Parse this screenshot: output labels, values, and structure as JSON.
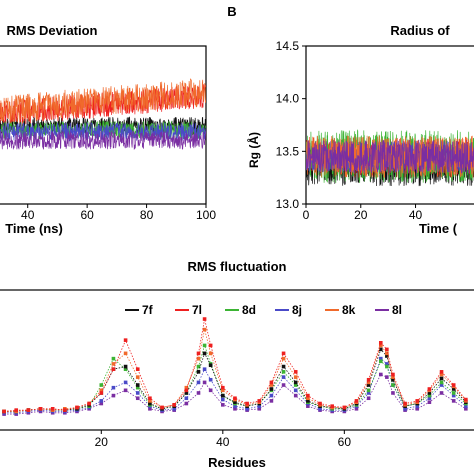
{
  "colors": {
    "7f": "#111111",
    "7l": "#ee2020",
    "8d": "#3cb434",
    "8j": "#4a4ac8",
    "8k": "#f06a2c",
    "8l": "#7a2ea2"
  },
  "panel_letter_b": "B",
  "chart_data": [
    {
      "type": "line",
      "title": "RMS Deviation",
      "xlabel": "Time (ns)",
      "ylabel": "",
      "xlim": [
        30,
        100
      ],
      "x_ticks": [
        40,
        60,
        80,
        100
      ],
      "grid": false,
      "legend": "none",
      "series": [
        {
          "key": "7f",
          "mean_level": 0.5,
          "noise": 0.1
        },
        {
          "key": "7l",
          "mean_level": 0.35,
          "noise": 0.14
        },
        {
          "key": "8d",
          "mean_level": 0.55,
          "noise": 0.1
        },
        {
          "key": "8j",
          "mean_level": 0.57,
          "noise": 0.1
        },
        {
          "key": "8k",
          "mean_level": 0.3,
          "noise": 0.16
        },
        {
          "key": "8l",
          "mean_level": 0.68,
          "noise": 0.1
        }
      ]
    },
    {
      "type": "line",
      "title": "Radius of",
      "xlabel": "Time (",
      "ylabel": "Rg (Å)",
      "xlim": [
        0,
        65
      ],
      "ylim": [
        13.0,
        14.5
      ],
      "x_ticks": [
        0,
        20,
        40
      ],
      "y_ticks": [
        13.0,
        13.5,
        14.0,
        14.5
      ],
      "grid": false,
      "legend": "none",
      "series": [
        {
          "key": "7f",
          "mean": 13.35,
          "noise": 0.18
        },
        {
          "key": "7l",
          "mean": 13.45,
          "noise": 0.18
        },
        {
          "key": "8d",
          "mean": 13.45,
          "noise": 0.25
        },
        {
          "key": "8j",
          "mean": 13.45,
          "noise": 0.15
        },
        {
          "key": "8k",
          "mean": 13.45,
          "noise": 0.2
        },
        {
          "key": "8l",
          "mean": 13.45,
          "noise": 0.16
        }
      ]
    },
    {
      "type": "line",
      "title": "RMS fluctuation",
      "xlabel": "Residues",
      "ylabel": "",
      "xlim": [
        3,
        82
      ],
      "ylim": [
        0,
        1
      ],
      "x_ticks": [
        20,
        40,
        60
      ],
      "grid": false,
      "legend": "top",
      "x": [
        4,
        6,
        8,
        10,
        12,
        14,
        16,
        18,
        20,
        22,
        24,
        26,
        28,
        30,
        32,
        34,
        36,
        37,
        38,
        40,
        42,
        44,
        46,
        48,
        50,
        52,
        54,
        56,
        58,
        60,
        62,
        64,
        66,
        67,
        68,
        70,
        72,
        74,
        76,
        78,
        80
      ],
      "series": [
        {
          "name": "7f",
          "values": [
            0.08,
            0.08,
            0.09,
            0.1,
            0.09,
            0.09,
            0.1,
            0.13,
            0.22,
            0.4,
            0.42,
            0.28,
            0.14,
            0.1,
            0.12,
            0.22,
            0.38,
            0.52,
            0.43,
            0.2,
            0.15,
            0.12,
            0.14,
            0.25,
            0.42,
            0.3,
            0.16,
            0.12,
            0.11,
            0.1,
            0.14,
            0.28,
            0.55,
            0.5,
            0.32,
            0.12,
            0.14,
            0.22,
            0.33,
            0.25,
            0.15
          ]
        },
        {
          "name": "7l",
          "values": [
            0.08,
            0.09,
            0.09,
            0.1,
            0.1,
            0.09,
            0.11,
            0.14,
            0.22,
            0.4,
            0.62,
            0.4,
            0.18,
            0.11,
            0.13,
            0.24,
            0.52,
            0.78,
            0.58,
            0.26,
            0.18,
            0.14,
            0.16,
            0.3,
            0.52,
            0.38,
            0.2,
            0.14,
            0.12,
            0.11,
            0.16,
            0.32,
            0.6,
            0.55,
            0.36,
            0.14,
            0.16,
            0.25,
            0.38,
            0.28,
            0.17
          ]
        },
        {
          "name": "8d",
          "values": [
            0.08,
            0.08,
            0.09,
            0.1,
            0.09,
            0.09,
            0.1,
            0.12,
            0.28,
            0.48,
            0.4,
            0.26,
            0.13,
            0.1,
            0.12,
            0.22,
            0.42,
            0.58,
            0.44,
            0.2,
            0.14,
            0.12,
            0.14,
            0.24,
            0.38,
            0.28,
            0.15,
            0.12,
            0.1,
            0.1,
            0.13,
            0.24,
            0.46,
            0.42,
            0.28,
            0.12,
            0.14,
            0.2,
            0.3,
            0.22,
            0.14
          ]
        },
        {
          "name": "8j",
          "values": [
            0.07,
            0.07,
            0.08,
            0.09,
            0.08,
            0.08,
            0.09,
            0.11,
            0.16,
            0.26,
            0.3,
            0.22,
            0.12,
            0.09,
            0.1,
            0.18,
            0.3,
            0.4,
            0.32,
            0.17,
            0.12,
            0.1,
            0.12,
            0.2,
            0.34,
            0.24,
            0.14,
            0.1,
            0.09,
            0.09,
            0.12,
            0.22,
            0.48,
            0.44,
            0.28,
            0.1,
            0.12,
            0.18,
            0.28,
            0.2,
            0.12
          ]
        },
        {
          "name": "8k",
          "values": [
            0.08,
            0.08,
            0.09,
            0.1,
            0.09,
            0.1,
            0.11,
            0.14,
            0.24,
            0.44,
            0.52,
            0.34,
            0.16,
            0.11,
            0.13,
            0.26,
            0.48,
            0.7,
            0.52,
            0.24,
            0.17,
            0.13,
            0.15,
            0.28,
            0.48,
            0.34,
            0.18,
            0.13,
            0.11,
            0.11,
            0.15,
            0.3,
            0.58,
            0.52,
            0.34,
            0.13,
            0.15,
            0.24,
            0.36,
            0.27,
            0.16
          ]
        },
        {
          "name": "8l",
          "values": [
            0.06,
            0.06,
            0.07,
            0.08,
            0.07,
            0.07,
            0.08,
            0.1,
            0.14,
            0.2,
            0.24,
            0.18,
            0.1,
            0.08,
            0.09,
            0.14,
            0.22,
            0.3,
            0.24,
            0.13,
            0.1,
            0.09,
            0.1,
            0.16,
            0.28,
            0.2,
            0.12,
            0.09,
            0.08,
            0.08,
            0.1,
            0.18,
            0.36,
            0.34,
            0.22,
            0.09,
            0.1,
            0.15,
            0.22,
            0.16,
            0.1
          ]
        }
      ]
    }
  ]
}
